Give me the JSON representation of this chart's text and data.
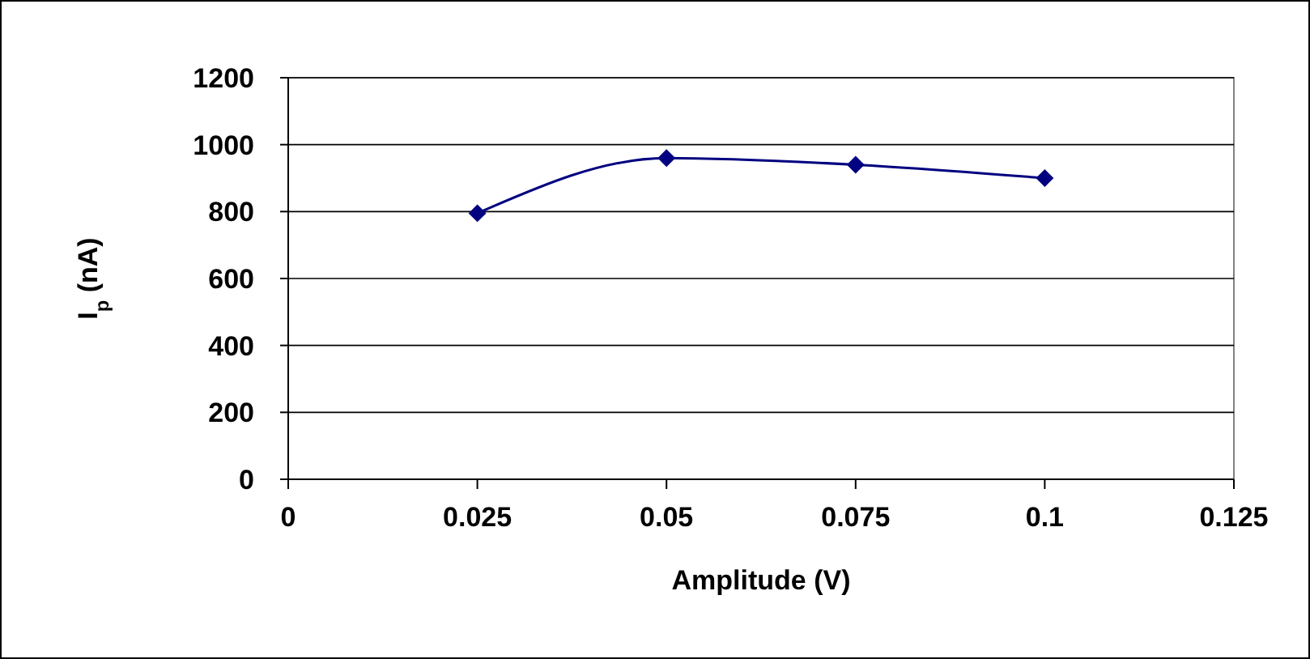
{
  "chart_data": {
    "type": "line",
    "xlabel": "Amplitude (V)",
    "ylabel": "I$_{p}$ (nA)",
    "x": [
      0.025,
      0.05,
      0.075,
      0.1
    ],
    "series": [
      {
        "color": "#000080",
        "values": [
          795,
          960,
          940,
          900
        ]
      }
    ],
    "xlim": [
      0,
      0.125
    ],
    "xticks": [
      0,
      0.025,
      0.05,
      0.075,
      0.1,
      0.125
    ],
    "ylim": [
      0,
      1200
    ],
    "yticks": [
      0,
      200,
      400,
      600,
      800,
      1000,
      1200
    ],
    "grid": "y",
    "marker": "diamond",
    "line_style": "solid"
  }
}
